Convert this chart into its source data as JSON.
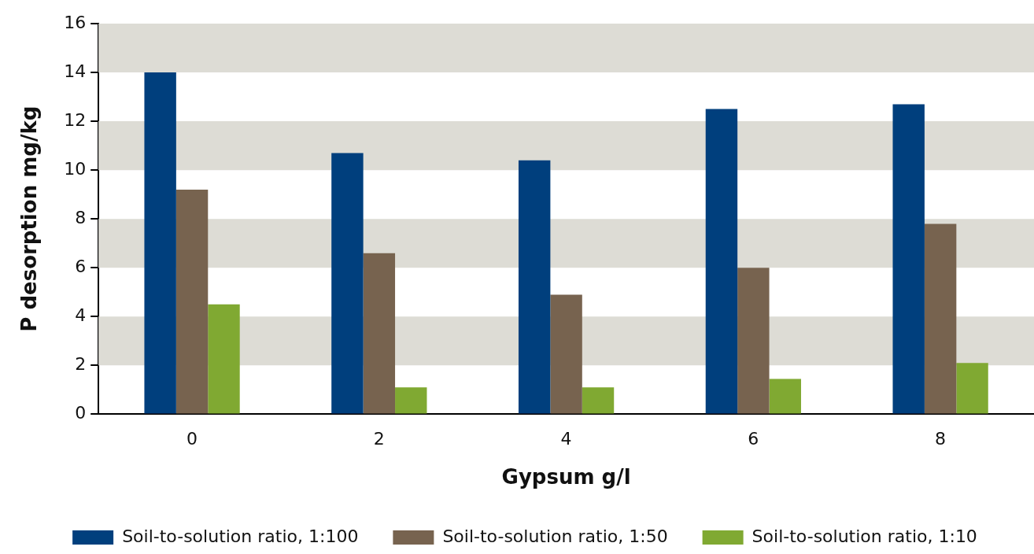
{
  "chart_data": {
    "type": "bar",
    "xlabel": "Gypsum g/l",
    "ylabel": "P desorption mg/kg",
    "categories": [
      "0",
      "2",
      "4",
      "6",
      "8"
    ],
    "series": [
      {
        "name": "Soil-to-solution ratio, 1:100",
        "color": "#003f7d",
        "values": [
          14.0,
          10.7,
          10.4,
          12.5,
          12.7
        ]
      },
      {
        "name": "Soil-to-solution ratio, 1:50",
        "color": "#77634f",
        "values": [
          9.2,
          6.6,
          4.9,
          6.0,
          7.8
        ]
      },
      {
        "name": "Soil-to-solution ratio, 1:10",
        "color": "#80a932",
        "values": [
          4.5,
          1.1,
          1.1,
          1.45,
          2.1
        ]
      }
    ],
    "ylim": [
      0,
      16
    ],
    "yticks": [
      0,
      2,
      4,
      6,
      8,
      10,
      12,
      14,
      16
    ],
    "bands": [
      {
        "axis": "y",
        "from": 2,
        "to": 4,
        "color": "#dddcd5"
      },
      {
        "axis": "y",
        "from": 6,
        "to": 8,
        "color": "#dddcd5"
      },
      {
        "axis": "y",
        "from": 10,
        "to": 12,
        "color": "#dddcd5"
      },
      {
        "axis": "y",
        "from": 14,
        "to": 16,
        "color": "#dddcd5"
      }
    ],
    "grid": false,
    "legend": "bottom"
  }
}
